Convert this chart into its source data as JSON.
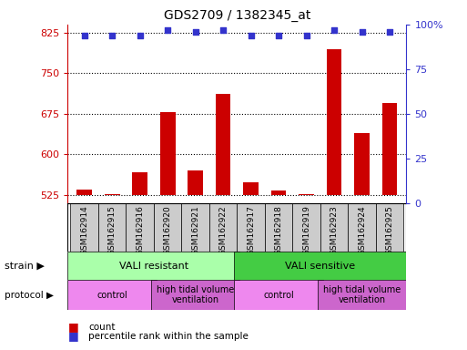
{
  "title": "GDS2709 / 1382345_at",
  "samples": [
    "GSM162914",
    "GSM162915",
    "GSM162916",
    "GSM162920",
    "GSM162921",
    "GSM162922",
    "GSM162917",
    "GSM162918",
    "GSM162919",
    "GSM162923",
    "GSM162924",
    "GSM162925"
  ],
  "counts": [
    535,
    527,
    567,
    678,
    570,
    712,
    548,
    533,
    527,
    795,
    640,
    695
  ],
  "percentile_ranks": [
    94,
    94,
    94,
    97,
    96,
    97,
    94,
    94,
    94,
    97,
    96,
    96
  ],
  "ylim_left": [
    510,
    840
  ],
  "ylim_right": [
    0,
    100
  ],
  "yticks_left": [
    525,
    600,
    675,
    750,
    825
  ],
  "yticks_right": [
    0,
    25,
    50,
    75,
    100
  ],
  "bar_color": "#cc0000",
  "dot_color": "#3333cc",
  "bar_bottom": 525,
  "strain_groups": [
    {
      "label": "VALI resistant",
      "start": 0,
      "end": 6,
      "color": "#aaffaa"
    },
    {
      "label": "VALI sensitive",
      "start": 6,
      "end": 12,
      "color": "#44cc44"
    }
  ],
  "protocol_groups": [
    {
      "label": "control",
      "start": 0,
      "end": 3,
      "color": "#ee88ee"
    },
    {
      "label": "high tidal volume\nventilation",
      "start": 3,
      "end": 6,
      "color": "#cc66cc"
    },
    {
      "label": "control",
      "start": 6,
      "end": 9,
      "color": "#ee88ee"
    },
    {
      "label": "high tidal volume\nventilation",
      "start": 9,
      "end": 12,
      "color": "#cc66cc"
    }
  ],
  "legend_bar_label": "count",
  "legend_dot_label": "percentile rank within the sample",
  "left_axis_color": "#cc0000",
  "right_axis_color": "#3333cc",
  "bg_color": "#ffffff",
  "dotted_grid_color": "#000000",
  "sample_box_color": "#cccccc",
  "xlim": [
    -0.6,
    11.6
  ]
}
